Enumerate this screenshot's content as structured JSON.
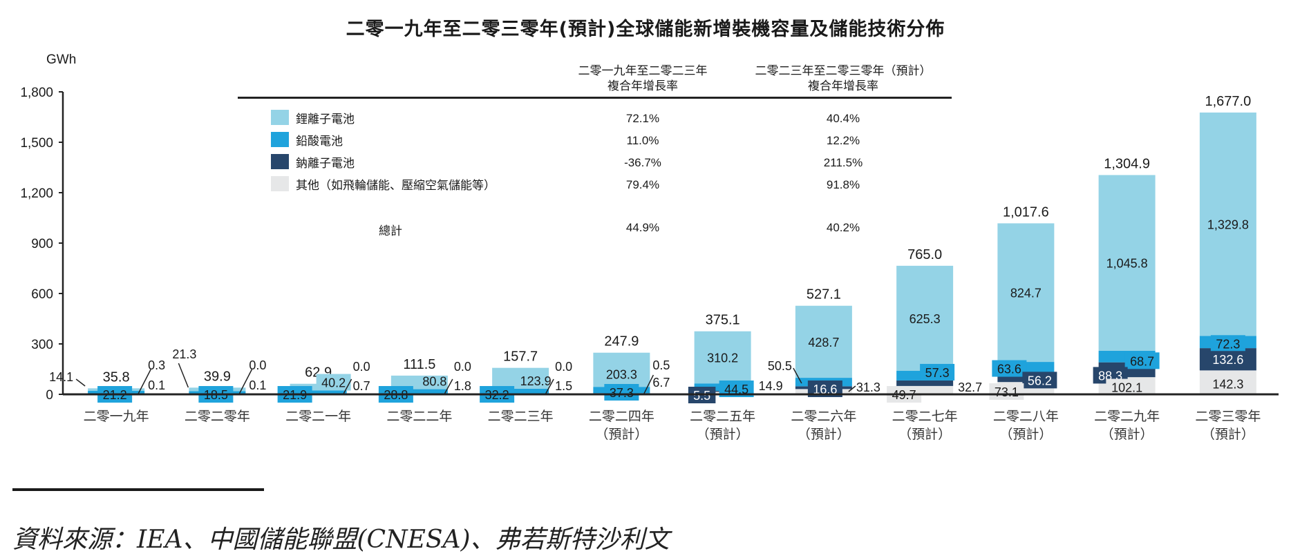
{
  "title": "二零一九年至二零三零年(預計)全球儲能新增裝機容量及儲能技術分佈",
  "unit": "GWh",
  "cagr_table": {
    "headers": [
      {
        "line1": "二零一九年至二零二三年",
        "line2": "複合年增長率"
      },
      {
        "line1": "二零二三年至二零三零年（預計）",
        "line2": "複合年增長率"
      }
    ],
    "rows": [
      {
        "label": "鋰離子電池",
        "color": "#94d3e6",
        "cagr_2019_2023": "72.1%",
        "cagr_2023_2030": "40.4%"
      },
      {
        "label": "鉛酸電池",
        "color": "#1fa3dc",
        "cagr_2019_2023": "11.0%",
        "cagr_2023_2030": "12.2%"
      },
      {
        "label": "鈉離子電池",
        "color": "#27466b",
        "cagr_2019_2023": "-36.7%",
        "cagr_2023_2030": "211.5%"
      },
      {
        "label": "其他（如飛輪儲能、壓縮空氣儲能等）",
        "color": "#e6e7e8",
        "cagr_2019_2023": "79.4%",
        "cagr_2023_2030": "91.8%"
      }
    ],
    "total": {
      "label": "總計",
      "cagr_2019_2023": "44.9%",
      "cagr_2023_2030": "40.2%"
    }
  },
  "source_note": "資料來源：IEA、中國儲能聯盟(CNESA)、弗若斯特沙利文",
  "chart_data": {
    "type": "bar",
    "stacked": true,
    "title": "二零一九年至二零三零年(預計)全球儲能新增裝機容量及儲能技術分佈",
    "xlabel": "",
    "ylabel": "GWh",
    "ylim": [
      0,
      1800
    ],
    "yticks": [
      0,
      300,
      600,
      900,
      1200,
      1500,
      1800
    ],
    "ytick_labels": [
      "0",
      "300",
      "600",
      "900",
      "1,200",
      "1,500",
      "1,800"
    ],
    "grid": false,
    "legend_position": "top-left",
    "categories": [
      {
        "line1": "二零一九年",
        "line2": ""
      },
      {
        "line1": "二零二零年",
        "line2": ""
      },
      {
        "line1": "二零二一年",
        "line2": ""
      },
      {
        "line1": "二零二二年",
        "line2": ""
      },
      {
        "line1": "二零二三年",
        "line2": ""
      },
      {
        "line1": "二零二四年",
        "line2": "（預計）"
      },
      {
        "line1": "二零二五年",
        "line2": "（預計）"
      },
      {
        "line1": "二零二六年",
        "line2": "（預計）"
      },
      {
        "line1": "二零二七年",
        "line2": "（預計）"
      },
      {
        "line1": "二零二八年",
        "line2": "（預計）"
      },
      {
        "line1": "二零二九年",
        "line2": "（預計）"
      },
      {
        "line1": "二零三零年",
        "line2": "（預計）"
      }
    ],
    "series": [
      {
        "name": "其他（如飛輪儲能、壓縮空氣儲能等）",
        "color": "#e6e7e8",
        "values": [
          0.1,
          0.1,
          0.7,
          1.8,
          1.5,
          6.7,
          14.9,
          31.3,
          49.7,
          73.1,
          102.1,
          142.3
        ]
      },
      {
        "name": "鈉離子電池",
        "color": "#27466b",
        "values": [
          0.3,
          0.0,
          0.0,
          0.0,
          0.0,
          0.5,
          5.5,
          16.6,
          32.7,
          56.2,
          88.3,
          132.6
        ]
      },
      {
        "name": "鉛酸電池",
        "color": "#1fa3dc",
        "values": [
          21.2,
          18.5,
          21.9,
          28.8,
          32.2,
          37.3,
          44.5,
          50.5,
          57.3,
          63.6,
          68.7,
          72.3
        ]
      },
      {
        "name": "鋰離子電池",
        "color": "#94d3e6",
        "values": [
          14.1,
          21.3,
          40.2,
          80.8,
          123.9,
          203.3,
          310.2,
          428.7,
          625.3,
          824.7,
          1045.8,
          1329.8
        ]
      }
    ],
    "totals": [
      35.8,
      39.9,
      62.9,
      111.5,
      157.7,
      247.9,
      375.1,
      527.1,
      765.0,
      1017.6,
      1304.9,
      1677.0
    ],
    "total_labels": [
      "35.8",
      "39.9",
      "62.9",
      "111.5",
      "157.7",
      "247.9",
      "375.1",
      "527.1",
      "765.0",
      "1,017.6",
      "1,304.9",
      "1,677.0"
    ]
  }
}
